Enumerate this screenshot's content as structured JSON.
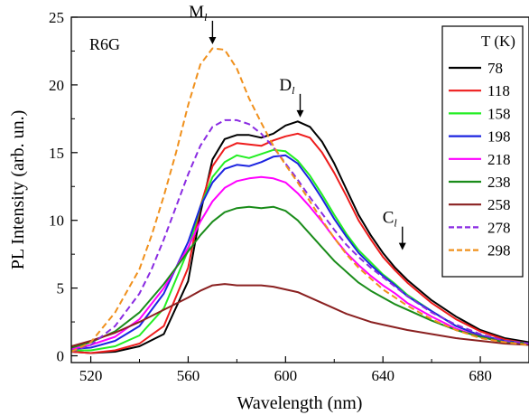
{
  "chart_data": {
    "type": "line",
    "xlabel": "Wavelength (nm)",
    "ylabel": "PL Intensity (arb. un.)",
    "xlim": [
      512,
      700
    ],
    "ylim": [
      -0.5,
      25
    ],
    "xticks": [
      520,
      560,
      600,
      640,
      680
    ],
    "yticks": [
      0,
      5,
      10,
      15,
      20,
      25
    ],
    "grid": false,
    "sample_label": "R6G",
    "legend": {
      "title": "T (K)",
      "placement": "top-right"
    },
    "annotations": [
      {
        "label": "M",
        "sub": "l",
        "x": 570,
        "y": 22.8
      },
      {
        "label": "D",
        "sub": "l",
        "x": 606,
        "y": 17.4
      },
      {
        "label": "C",
        "sub": "l",
        "x": 648,
        "y": 7.6
      }
    ],
    "series": [
      {
        "name": "78",
        "color": "#000000",
        "dash": "solid",
        "points": [
          [
            512,
            0.3
          ],
          [
            520,
            0.2
          ],
          [
            530,
            0.3
          ],
          [
            540,
            0.7
          ],
          [
            550,
            1.6
          ],
          [
            560,
            5.5
          ],
          [
            565,
            10.5
          ],
          [
            570,
            14.5
          ],
          [
            575,
            16.0
          ],
          [
            580,
            16.3
          ],
          [
            585,
            16.3
          ],
          [
            590,
            16.1
          ],
          [
            595,
            16.4
          ],
          [
            600,
            17.0
          ],
          [
            605,
            17.3
          ],
          [
            610,
            16.9
          ],
          [
            615,
            15.8
          ],
          [
            620,
            14.2
          ],
          [
            625,
            12.3
          ],
          [
            630,
            10.4
          ],
          [
            635,
            8.9
          ],
          [
            640,
            7.6
          ],
          [
            645,
            6.5
          ],
          [
            650,
            5.6
          ],
          [
            660,
            4.1
          ],
          [
            670,
            2.9
          ],
          [
            680,
            1.9
          ],
          [
            690,
            1.3
          ],
          [
            700,
            1.0
          ]
        ]
      },
      {
        "name": "118",
        "color": "#ee1c1c",
        "dash": "solid",
        "points": [
          [
            512,
            0.3
          ],
          [
            520,
            0.2
          ],
          [
            530,
            0.4
          ],
          [
            540,
            0.9
          ],
          [
            550,
            2.2
          ],
          [
            560,
            6.5
          ],
          [
            565,
            11.0
          ],
          [
            570,
            14.0
          ],
          [
            575,
            15.3
          ],
          [
            580,
            15.7
          ],
          [
            585,
            15.6
          ],
          [
            590,
            15.5
          ],
          [
            595,
            15.9
          ],
          [
            600,
            16.2
          ],
          [
            605,
            16.4
          ],
          [
            610,
            16.1
          ],
          [
            615,
            15.0
          ],
          [
            620,
            13.5
          ],
          [
            625,
            11.8
          ],
          [
            630,
            10.0
          ],
          [
            635,
            8.6
          ],
          [
            640,
            7.3
          ],
          [
            645,
            6.3
          ],
          [
            650,
            5.4
          ],
          [
            660,
            3.9
          ],
          [
            670,
            2.7
          ],
          [
            680,
            1.8
          ],
          [
            690,
            1.2
          ],
          [
            700,
            0.9
          ]
        ]
      },
      {
        "name": "158",
        "color": "#22ee22",
        "dash": "solid",
        "points": [
          [
            512,
            0.4
          ],
          [
            520,
            0.4
          ],
          [
            530,
            0.7
          ],
          [
            540,
            1.5
          ],
          [
            550,
            3.5
          ],
          [
            560,
            7.8
          ],
          [
            565,
            11.0
          ],
          [
            570,
            13.2
          ],
          [
            575,
            14.3
          ],
          [
            580,
            14.8
          ],
          [
            585,
            14.6
          ],
          [
            590,
            14.9
          ],
          [
            595,
            15.2
          ],
          [
            600,
            15.1
          ],
          [
            605,
            14.4
          ],
          [
            610,
            13.3
          ],
          [
            615,
            11.9
          ],
          [
            620,
            10.4
          ],
          [
            625,
            9.0
          ],
          [
            630,
            7.8
          ],
          [
            635,
            6.9
          ],
          [
            640,
            6.0
          ],
          [
            645,
            5.3
          ],
          [
            650,
            4.5
          ],
          [
            660,
            3.3
          ],
          [
            670,
            2.2
          ],
          [
            680,
            1.5
          ],
          [
            690,
            1.1
          ],
          [
            700,
            0.9
          ]
        ]
      },
      {
        "name": "198",
        "color": "#1c24e0",
        "dash": "solid",
        "points": [
          [
            512,
            0.5
          ],
          [
            520,
            0.6
          ],
          [
            530,
            1.1
          ],
          [
            540,
            2.2
          ],
          [
            550,
            4.6
          ],
          [
            560,
            8.4
          ],
          [
            565,
            11.0
          ],
          [
            570,
            12.8
          ],
          [
            575,
            13.8
          ],
          [
            580,
            14.1
          ],
          [
            585,
            14.0
          ],
          [
            590,
            14.3
          ],
          [
            595,
            14.7
          ],
          [
            600,
            14.8
          ],
          [
            605,
            14.2
          ],
          [
            610,
            13.0
          ],
          [
            615,
            11.6
          ],
          [
            620,
            10.1
          ],
          [
            625,
            8.8
          ],
          [
            630,
            7.6
          ],
          [
            635,
            6.7
          ],
          [
            640,
            5.9
          ],
          [
            645,
            5.2
          ],
          [
            650,
            4.4
          ],
          [
            660,
            3.3
          ],
          [
            670,
            2.2
          ],
          [
            680,
            1.5
          ],
          [
            690,
            1.1
          ],
          [
            700,
            0.9
          ]
        ]
      },
      {
        "name": "218",
        "color": "#ff00ff",
        "dash": "solid",
        "points": [
          [
            512,
            0.5
          ],
          [
            520,
            0.8
          ],
          [
            530,
            1.4
          ],
          [
            540,
            2.7
          ],
          [
            550,
            5.0
          ],
          [
            560,
            8.0
          ],
          [
            565,
            9.9
          ],
          [
            570,
            11.4
          ],
          [
            575,
            12.4
          ],
          [
            580,
            12.9
          ],
          [
            585,
            13.1
          ],
          [
            590,
            13.2
          ],
          [
            595,
            13.1
          ],
          [
            600,
            12.8
          ],
          [
            605,
            12.0
          ],
          [
            610,
            11.0
          ],
          [
            615,
            9.9
          ],
          [
            620,
            8.7
          ],
          [
            625,
            7.6
          ],
          [
            630,
            6.7
          ],
          [
            635,
            5.9
          ],
          [
            640,
            5.2
          ],
          [
            645,
            4.6
          ],
          [
            650,
            3.9
          ],
          [
            660,
            2.9
          ],
          [
            670,
            2.0
          ],
          [
            680,
            1.4
          ],
          [
            690,
            1.0
          ],
          [
            700,
            0.9
          ]
        ]
      },
      {
        "name": "238",
        "color": "#1a8c1a",
        "dash": "solid",
        "points": [
          [
            512,
            0.6
          ],
          [
            520,
            1.0
          ],
          [
            530,
            1.8
          ],
          [
            540,
            3.2
          ],
          [
            550,
            5.3
          ],
          [
            560,
            7.7
          ],
          [
            565,
            8.9
          ],
          [
            570,
            9.9
          ],
          [
            575,
            10.6
          ],
          [
            580,
            10.9
          ],
          [
            585,
            11.0
          ],
          [
            590,
            10.9
          ],
          [
            595,
            11.0
          ],
          [
            600,
            10.7
          ],
          [
            605,
            10.0
          ],
          [
            610,
            9.0
          ],
          [
            615,
            8.0
          ],
          [
            620,
            7.0
          ],
          [
            625,
            6.2
          ],
          [
            630,
            5.4
          ],
          [
            635,
            4.8
          ],
          [
            640,
            4.3
          ],
          [
            645,
            3.8
          ],
          [
            650,
            3.4
          ],
          [
            660,
            2.6
          ],
          [
            670,
            1.9
          ],
          [
            680,
            1.4
          ],
          [
            690,
            1.0
          ],
          [
            700,
            0.9
          ]
        ]
      },
      {
        "name": "258",
        "color": "#8a2020",
        "dash": "solid",
        "points": [
          [
            512,
            0.7
          ],
          [
            520,
            1.1
          ],
          [
            530,
            1.7
          ],
          [
            540,
            2.5
          ],
          [
            550,
            3.4
          ],
          [
            560,
            4.3
          ],
          [
            565,
            4.8
          ],
          [
            570,
            5.2
          ],
          [
            575,
            5.3
          ],
          [
            580,
            5.2
          ],
          [
            585,
            5.2
          ],
          [
            590,
            5.2
          ],
          [
            595,
            5.1
          ],
          [
            600,
            4.9
          ],
          [
            605,
            4.7
          ],
          [
            610,
            4.3
          ],
          [
            615,
            3.9
          ],
          [
            620,
            3.5
          ],
          [
            625,
            3.1
          ],
          [
            630,
            2.8
          ],
          [
            635,
            2.5
          ],
          [
            640,
            2.3
          ],
          [
            650,
            1.9
          ],
          [
            660,
            1.6
          ],
          [
            670,
            1.3
          ],
          [
            680,
            1.1
          ],
          [
            690,
            0.9
          ],
          [
            700,
            0.8
          ]
        ]
      },
      {
        "name": "278",
        "color": "#8a2be2",
        "dash": "dashed",
        "points": [
          [
            512,
            0.3
          ],
          [
            520,
            0.8
          ],
          [
            530,
            2.2
          ],
          [
            540,
            4.6
          ],
          [
            545,
            6.4
          ],
          [
            550,
            8.6
          ],
          [
            555,
            11.0
          ],
          [
            560,
            13.4
          ],
          [
            565,
            15.5
          ],
          [
            570,
            16.9
          ],
          [
            575,
            17.4
          ],
          [
            580,
            17.4
          ],
          [
            585,
            17.1
          ],
          [
            590,
            16.4
          ],
          [
            595,
            15.4
          ],
          [
            600,
            14.2
          ],
          [
            605,
            13.0
          ],
          [
            610,
            11.7
          ],
          [
            615,
            10.5
          ],
          [
            620,
            9.3
          ],
          [
            625,
            8.2
          ],
          [
            630,
            7.3
          ],
          [
            635,
            6.5
          ],
          [
            640,
            5.8
          ],
          [
            645,
            5.1
          ],
          [
            650,
            4.4
          ],
          [
            660,
            3.2
          ],
          [
            670,
            2.3
          ],
          [
            680,
            1.6
          ],
          [
            690,
            1.1
          ],
          [
            700,
            0.9
          ]
        ]
      },
      {
        "name": "298",
        "color": "#f0901c",
        "dash": "dashed",
        "points": [
          [
            512,
            0.3
          ],
          [
            520,
            1.0
          ],
          [
            530,
            3.2
          ],
          [
            540,
            6.4
          ],
          [
            545,
            8.9
          ],
          [
            550,
            11.8
          ],
          [
            555,
            15.0
          ],
          [
            560,
            18.5
          ],
          [
            565,
            21.5
          ],
          [
            570,
            22.7
          ],
          [
            575,
            22.6
          ],
          [
            580,
            21.2
          ],
          [
            585,
            19.0
          ],
          [
            590,
            17.2
          ],
          [
            595,
            15.5
          ],
          [
            600,
            14.1
          ],
          [
            605,
            12.8
          ],
          [
            610,
            11.4
          ],
          [
            615,
            10.0
          ],
          [
            620,
            8.7
          ],
          [
            625,
            7.5
          ],
          [
            630,
            6.5
          ],
          [
            635,
            5.7
          ],
          [
            640,
            4.9
          ],
          [
            645,
            4.3
          ],
          [
            650,
            3.7
          ],
          [
            660,
            2.7
          ],
          [
            670,
            1.9
          ],
          [
            680,
            1.3
          ],
          [
            690,
            1.0
          ],
          [
            700,
            0.8
          ]
        ]
      }
    ]
  }
}
